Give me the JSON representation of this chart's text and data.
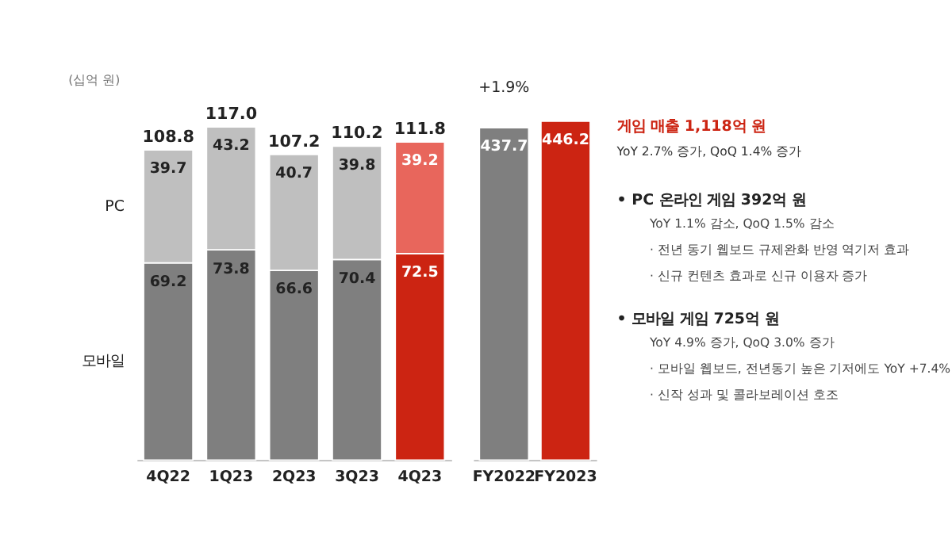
{
  "chart_data": [
    {
      "type": "bar",
      "stacked": true,
      "categories": [
        "4Q22",
        "1Q23",
        "2Q23",
        "3Q23",
        "4Q23"
      ],
      "data_labels": true,
      "legend": false,
      "grid": false,
      "series": [
        {
          "name": "모바일",
          "colors": [
            "#7f7f7f",
            "#7f7f7f",
            "#7f7f7f",
            "#7f7f7f",
            "#cc2412"
          ],
          "values": [
            69.2,
            73.8,
            66.6,
            70.4,
            72.5
          ]
        },
        {
          "name": "PC",
          "colors": [
            "#bfbfbf",
            "#bfbfbf",
            "#bfbfbf",
            "#bfbfbf",
            "#e8665c"
          ],
          "values": [
            39.7,
            43.2,
            40.7,
            39.8,
            39.2
          ]
        }
      ],
      "totals": [
        "108.8",
        "117.0",
        "107.2",
        "110.2",
        "111.8"
      ],
      "annotations": [
        "(십억 원)"
      ]
    },
    {
      "type": "bar",
      "categories": [
        "FY2022",
        "FY2023"
      ],
      "values": [
        437.7,
        446.2
      ],
      "colors": [
        "#7f7f7f",
        "#cc2412"
      ],
      "data_labels": true,
      "grid": false,
      "annotations": [
        "+1.9%"
      ]
    },
    {
      "type": "other",
      "title": "게임 매출 1,118억 원",
      "subtitle": "YoY 2.7% 증가, QoQ 1.4% 증가",
      "annotations": [
        "• PC 온라인 게임 392억 원",
        "YoY 1.1% 감소, QoQ 1.5% 감소",
        "· 전년 동기 웹보드 규제완화 반영 역기저 효과",
        "· 신규 컨텐츠 효과로 신규 이용자 증가",
        "• 모바일 게임 725억 원",
        "YoY 4.9% 증가, QoQ 3.0% 증가",
        "· 모바일 웹보드, 전년동기 높은 기저에도 YoY +7.4%",
        "· 신작 성과 및 콜라보레이션 호조"
      ]
    }
  ]
}
